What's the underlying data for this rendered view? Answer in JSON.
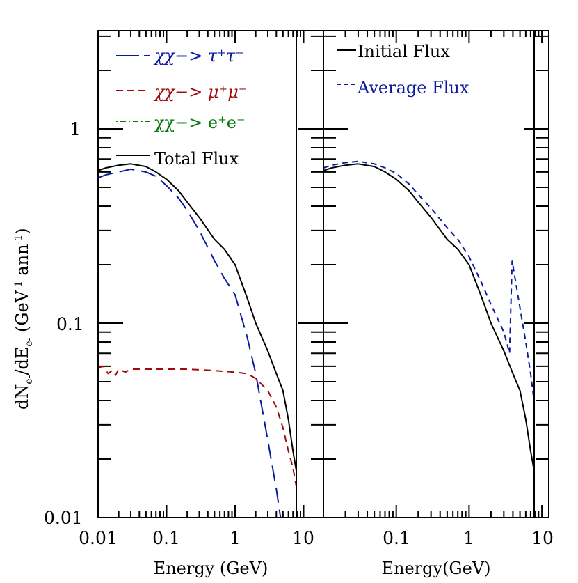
{
  "chart_data": [
    {
      "type": "line",
      "panel": "left",
      "title": "",
      "xlabel": "Energy (GeV)",
      "ylabel": "dN_e-/dE_e- (GeV^-1 ann^-1)",
      "xscale": "log",
      "yscale": "log",
      "xlim": [
        0.01,
        20
      ],
      "ylim": [
        0.01,
        3.2
      ],
      "x_ticks": [
        "0.01",
        "0.1",
        "1",
        "10"
      ],
      "y_ticks": [
        "0.01",
        "0.1",
        "1"
      ],
      "grid": false,
      "legend_position": "upper left",
      "vertical_line_x": 7.8,
      "series": [
        {
          "name": "χχ−> τ⁺τ⁻",
          "color": "#0a1aa0",
          "style": "long-dash",
          "x": [
            0.01,
            0.013,
            0.02,
            0.03,
            0.05,
            0.07,
            0.1,
            0.15,
            0.2,
            0.3,
            0.5,
            0.7,
            1.0,
            1.5,
            2.0,
            3.0,
            4.0,
            4.6
          ],
          "y": [
            0.56,
            0.58,
            0.6,
            0.62,
            0.6,
            0.57,
            0.51,
            0.44,
            0.38,
            0.3,
            0.21,
            0.17,
            0.14,
            0.085,
            0.055,
            0.025,
            0.014,
            0.01
          ]
        },
        {
          "name": "χχ−> μ⁺μ⁻",
          "color": "#a00a0a",
          "style": "dash",
          "x": [
            0.01,
            0.012,
            0.014,
            0.016,
            0.018,
            0.02,
            0.025,
            0.03,
            0.04,
            0.06,
            0.1,
            0.2,
            0.5,
            1.0,
            1.5,
            2.0,
            3.0,
            4.0,
            5.0,
            6.0,
            7.0,
            7.8
          ],
          "y": [
            0.059,
            0.06,
            0.055,
            0.057,
            0.054,
            0.058,
            0.056,
            0.058,
            0.058,
            0.058,
            0.058,
            0.058,
            0.057,
            0.056,
            0.055,
            0.052,
            0.045,
            0.037,
            0.029,
            0.022,
            0.018,
            0.0145
          ]
        },
        {
          "name": "χχ−> e⁺e⁻",
          "color": "#0a7a0a",
          "style": "dash-dot",
          "x": [],
          "y": []
        },
        {
          "name": "Total Flux",
          "color": "#000000",
          "style": "solid",
          "x": [
            0.01,
            0.013,
            0.02,
            0.03,
            0.05,
            0.07,
            0.1,
            0.15,
            0.2,
            0.3,
            0.5,
            0.7,
            1.0,
            1.5,
            2.0,
            3.0,
            4.0,
            5.0,
            6.0,
            7.0,
            7.8
          ],
          "y": [
            0.61,
            0.63,
            0.65,
            0.66,
            0.64,
            0.6,
            0.55,
            0.48,
            0.42,
            0.35,
            0.27,
            0.24,
            0.2,
            0.135,
            0.1,
            0.072,
            0.055,
            0.045,
            0.032,
            0.022,
            0.0175
          ]
        }
      ]
    },
    {
      "type": "line",
      "panel": "right",
      "title": "",
      "xlabel": "Energy(GeV)",
      "ylabel": "",
      "xscale": "log",
      "yscale": "log",
      "xlim": [
        0.01,
        12.5
      ],
      "ylim": [
        0.01,
        3.2
      ],
      "x_ticks": [
        "0.1",
        "1",
        "10"
      ],
      "y_ticks": [],
      "grid": false,
      "legend_position": "upper left",
      "vertical_line_x": 7.8,
      "series": [
        {
          "name": "Initial Flux",
          "color": "#000000",
          "style": "solid",
          "x": [
            0.01,
            0.013,
            0.02,
            0.03,
            0.05,
            0.07,
            0.1,
            0.15,
            0.2,
            0.3,
            0.5,
            0.7,
            1.0,
            1.5,
            2.0,
            3.0,
            4.0,
            5.0,
            6.0,
            7.0,
            7.8
          ],
          "y": [
            0.61,
            0.63,
            0.65,
            0.66,
            0.64,
            0.6,
            0.55,
            0.48,
            0.42,
            0.35,
            0.27,
            0.24,
            0.2,
            0.135,
            0.1,
            0.072,
            0.055,
            0.045,
            0.032,
            0.022,
            0.0175
          ]
        },
        {
          "name": "Average Flux",
          "color": "#0a1aa0",
          "style": "short-dash",
          "x": [
            0.01,
            0.013,
            0.02,
            0.03,
            0.05,
            0.07,
            0.1,
            0.15,
            0.2,
            0.3,
            0.5,
            0.7,
            1.0,
            1.5,
            2.0,
            3.0,
            3.6,
            3.9,
            5.0,
            6.0,
            7.0,
            7.8,
            7.8
          ],
          "y": [
            0.63,
            0.65,
            0.67,
            0.68,
            0.66,
            0.63,
            0.59,
            0.52,
            0.46,
            0.39,
            0.31,
            0.27,
            0.22,
            0.16,
            0.125,
            0.09,
            0.07,
            0.21,
            0.12,
            0.08,
            0.055,
            0.04,
            0.01
          ]
        }
      ]
    }
  ],
  "figure": {
    "left_panel": {
      "xlabel": "Energy (GeV)",
      "ylabel_main": "dN",
      "ylabel_sub1": "e-",
      "ylabel_mid": "/dE",
      "ylabel_sub2": "e-",
      "ylabel_units": " (GeV",
      "ylabel_sup1": "-1",
      "ylabel_units2": " ann",
      "ylabel_sup2": "-1",
      "ylabel_end": ")",
      "x_tick_labels": [
        "0.01",
        "0.1",
        "1",
        "10"
      ],
      "y_tick_labels": [
        "1",
        "0.1",
        "0.01"
      ],
      "legend": [
        {
          "label": "χχ−> τ⁺τ⁻",
          "color": "#0a1aa0"
        },
        {
          "label": "χχ−> μ⁺μ⁻",
          "color": "#a00a0a"
        },
        {
          "label": "χχ−> e⁺e⁻",
          "color": "#0a7a0a"
        },
        {
          "label": "Total Flux",
          "color": "#000000"
        }
      ]
    },
    "right_panel": {
      "xlabel": "Energy(GeV)",
      "x_tick_labels": [
        "0.1",
        "1",
        "10"
      ],
      "legend": [
        {
          "label": "Initial Flux",
          "color": "#000000"
        },
        {
          "label": "Average Flux",
          "color": "#0a1aa0"
        }
      ]
    }
  }
}
